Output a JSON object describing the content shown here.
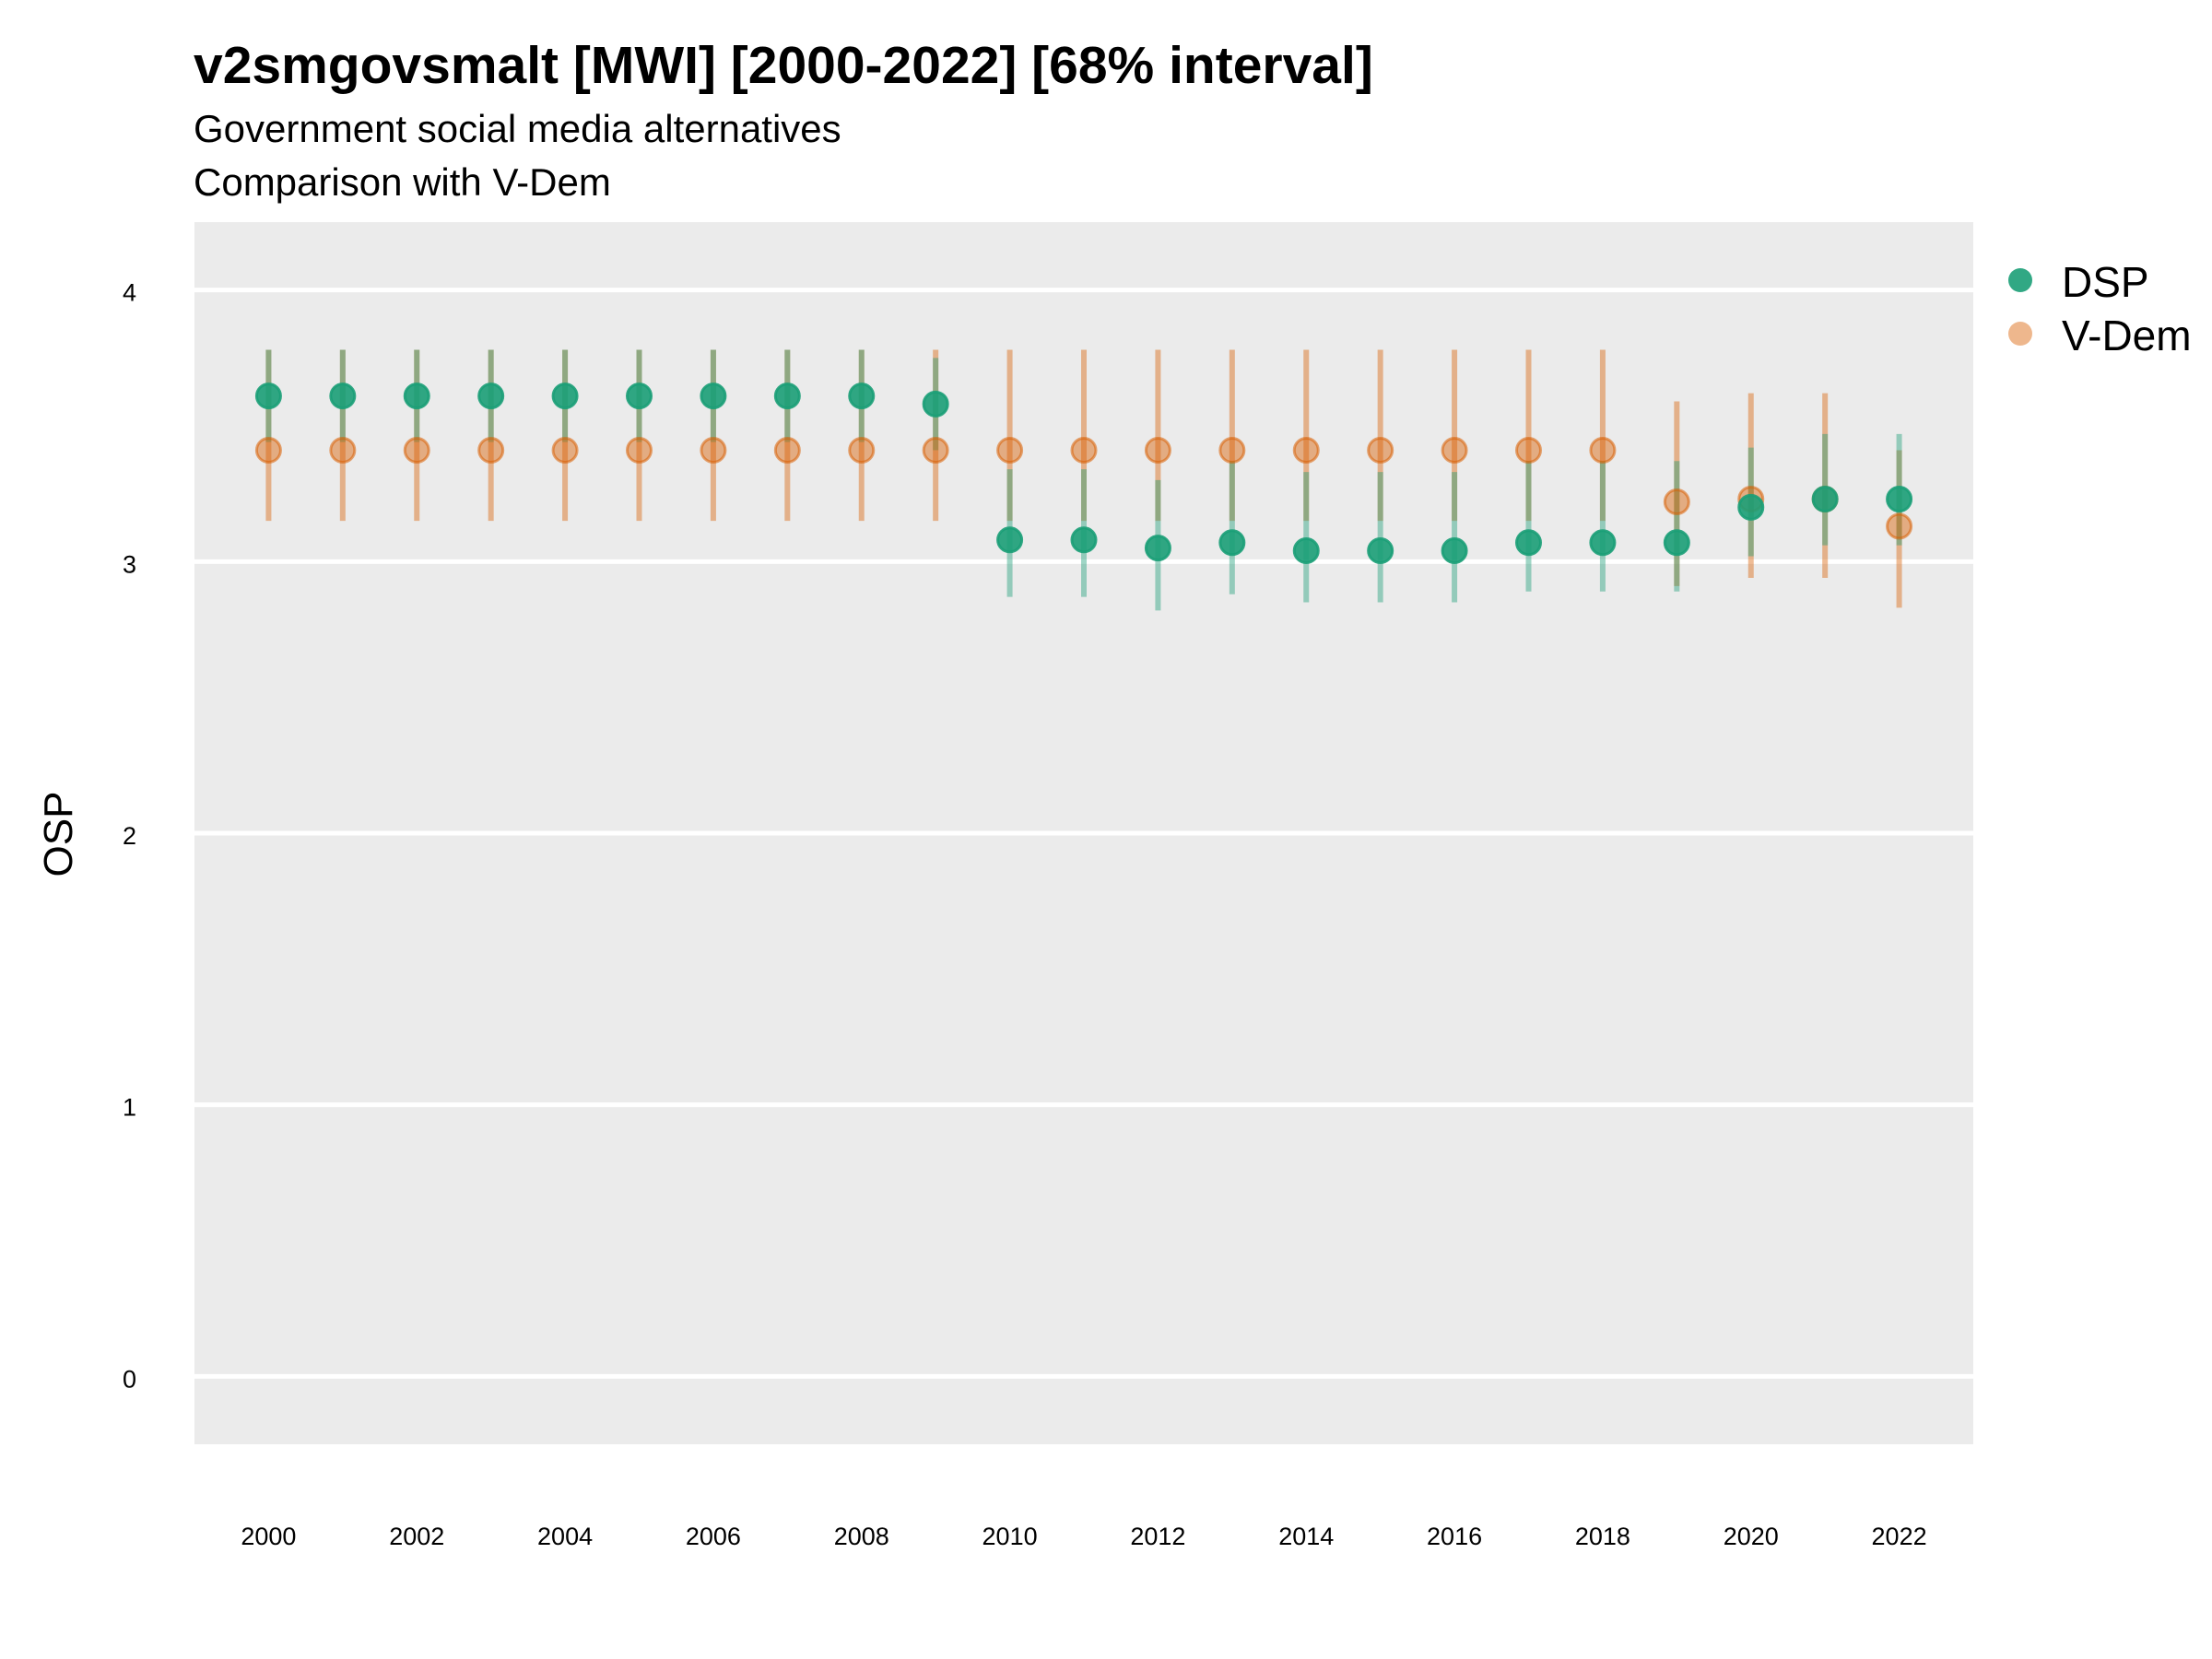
{
  "title": "v2smgovsmalt [MWI] [2000-2022] [68% interval]",
  "subtitle": "Government social media alternatives",
  "caption": "Comparison with V-Dem",
  "chart_data": {
    "type": "scatter",
    "ylabel": "OSP",
    "xlabel": "",
    "ylim": [
      -0.25,
      4.25
    ],
    "xlim": [
      1999,
      2023
    ],
    "yticks": [
      "0",
      "1",
      "2",
      "3",
      "4"
    ],
    "xticks": [
      "2000",
      "2002",
      "2004",
      "2006",
      "2008",
      "2010",
      "2012",
      "2014",
      "2016",
      "2018",
      "2020",
      "2022"
    ],
    "grid": true,
    "legend_position": "right",
    "x": [
      2000,
      2001,
      2002,
      2003,
      2004,
      2005,
      2006,
      2007,
      2008,
      2009,
      2010,
      2011,
      2012,
      2013,
      2014,
      2015,
      2016,
      2017,
      2018,
      2019,
      2020,
      2021,
      2022
    ],
    "series": [
      {
        "name": "DSP",
        "color": "#1b9e77",
        "values": [
          3.61,
          3.61,
          3.61,
          3.61,
          3.61,
          3.61,
          3.61,
          3.61,
          3.61,
          3.58,
          3.08,
          3.08,
          3.05,
          3.07,
          3.04,
          3.04,
          3.04,
          3.07,
          3.07,
          3.07,
          3.2,
          3.23,
          3.23
        ],
        "lower": [
          3.44,
          3.44,
          3.44,
          3.44,
          3.44,
          3.44,
          3.44,
          3.44,
          3.44,
          3.41,
          2.87,
          2.87,
          2.82,
          2.88,
          2.85,
          2.85,
          2.85,
          2.89,
          2.89,
          2.89,
          3.02,
          3.06,
          3.06
        ],
        "upper": [
          3.78,
          3.78,
          3.78,
          3.78,
          3.78,
          3.78,
          3.78,
          3.78,
          3.78,
          3.75,
          3.34,
          3.34,
          3.3,
          3.37,
          3.33,
          3.33,
          3.33,
          3.37,
          3.37,
          3.37,
          3.42,
          3.47,
          3.47
        ]
      },
      {
        "name": "V-Dem",
        "color": "#d95f02",
        "values": [
          3.41,
          3.41,
          3.41,
          3.41,
          3.41,
          3.41,
          3.41,
          3.41,
          3.41,
          3.41,
          3.41,
          3.41,
          3.41,
          3.41,
          3.41,
          3.41,
          3.41,
          3.41,
          3.41,
          3.22,
          3.23,
          3.23,
          3.13
        ],
        "lower": [
          3.15,
          3.15,
          3.15,
          3.15,
          3.15,
          3.15,
          3.15,
          3.15,
          3.15,
          3.15,
          3.15,
          3.15,
          3.15,
          3.15,
          3.15,
          3.15,
          3.15,
          3.15,
          3.15,
          2.91,
          2.94,
          2.94,
          2.83
        ],
        "upper": [
          3.78,
          3.78,
          3.78,
          3.78,
          3.78,
          3.78,
          3.78,
          3.78,
          3.78,
          3.78,
          3.78,
          3.78,
          3.78,
          3.78,
          3.78,
          3.78,
          3.78,
          3.78,
          3.78,
          3.59,
          3.62,
          3.62,
          3.41
        ]
      }
    ]
  }
}
